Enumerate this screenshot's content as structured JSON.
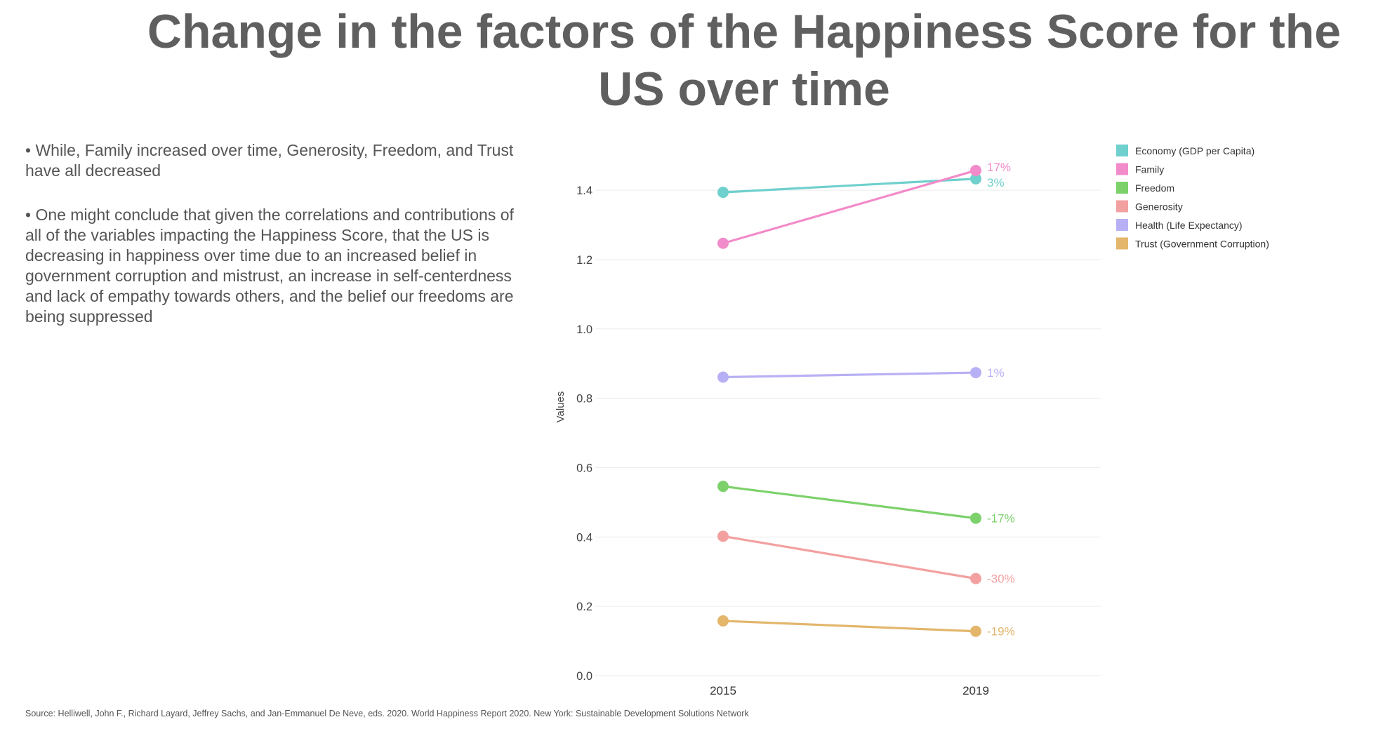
{
  "title": {
    "line1": "Change in the factors of the Happiness Score for the",
    "line2": "US over time"
  },
  "bullets": [
    "• While, Family increased over time, Generosity, Freedom, and Trust have all decreased",
    "• One might conclude that given the correlations and contributions of all of the variables impacting the Happiness Score, that the US is decreasing in happiness over time due to an increased belief in government corruption and mistrust, an increase in self-centerdness and lack of empathy towards others, and the belief our freedoms are being suppressed"
  ],
  "source": "Source: Helliwell, John F., Richard Layard, Jeffrey Sachs, and Jan-Emmanuel De Neve, eds. 2020. World Happiness Report 2020. New York: Sustainable Development Solutions Network",
  "chart_data": {
    "type": "line",
    "x": [
      "2015",
      "2019"
    ],
    "ylabel": "Values",
    "xlabel": "",
    "ylim": [
      0,
      1.55
    ],
    "yticks": [
      "0.0",
      "0.2",
      "0.4",
      "0.6",
      "0.8",
      "1.0",
      "1.2",
      "1.4"
    ],
    "grid": true,
    "legend_position": "top-right",
    "series": [
      {
        "name": "Economy (GDP per Capita)",
        "values": [
          1.394,
          1.433
        ],
        "color": "#6fd0cd",
        "change_label": "3%"
      },
      {
        "name": "Family",
        "values": [
          1.247,
          1.457
        ],
        "color": "#f28bc9",
        "change_label": "17%"
      },
      {
        "name": "Freedom",
        "values": [
          0.546,
          0.454
        ],
        "color": "#7cd16b",
        "change_label": "-17%"
      },
      {
        "name": "Generosity",
        "values": [
          0.402,
          0.28
        ],
        "color": "#f3a0a0",
        "change_label": "-30%"
      },
      {
        "name": "Health (Life Expectancy)",
        "values": [
          0.861,
          0.874
        ],
        "color": "#b8b0f4",
        "change_label": "1%"
      },
      {
        "name": "Trust (Government Corruption)",
        "values": [
          0.158,
          0.128
        ],
        "color": "#e3b66c",
        "change_label": "-19%"
      }
    ]
  }
}
